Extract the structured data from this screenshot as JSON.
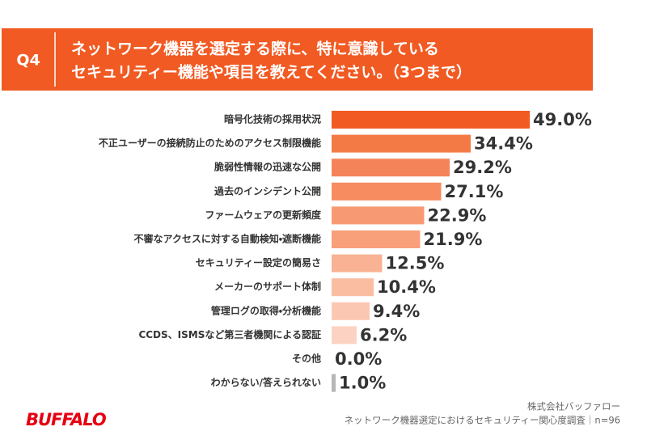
{
  "chart_data": {
    "type": "bar",
    "orientation": "horizontal",
    "question_label": "Q4",
    "title": [
      "ネットワーク機器を選定する際に、特に意識している",
      "セキュリティー機能や項目を教えてください。（3つまで）"
    ],
    "categories": [
      "暗号化技術の採用状況",
      "不正ユーザーの接続防止のためのアクセス制限機能",
      "脆弱性情報の迅速な公開",
      "過去のインシデント公開",
      "ファームウェアの更新頻度",
      "不審なアクセスに対する自動検知・遮断機能",
      "セキュリティー設定の簡易さ",
      "メーカーのサポート体制",
      "管理ログの取得・分析機能",
      "CCDS、ISMSなど第三者機関による認証",
      "その他",
      "わからない/答えられない"
    ],
    "values": [
      49.0,
      34.4,
      29.2,
      27.1,
      22.9,
      21.9,
      12.5,
      10.4,
      9.4,
      6.2,
      0.0,
      1.0
    ],
    "value_labels": [
      "49.0%",
      "34.4%",
      "29.2%",
      "27.1%",
      "22.9%",
      "21.9%",
      "12.5%",
      "10.4%",
      "9.4%",
      "6.2%",
      "0.0%",
      "1.0%"
    ],
    "colors": [
      "#f15a22",
      "#f47a45",
      "#f5835a",
      "#f68c60",
      "#f79a73",
      "#f8a07a",
      "#f9b394",
      "#fabda2",
      "#fbc7b2",
      "#fcd3c3",
      "#fde0d3",
      "#b5b5b5"
    ]
  },
  "footer": {
    "company": "株式会社バッファロー",
    "source": "ネットワーク機器選定におけるセキュリティー関心度調査｜n=96"
  },
  "logo": "BUFFALO"
}
